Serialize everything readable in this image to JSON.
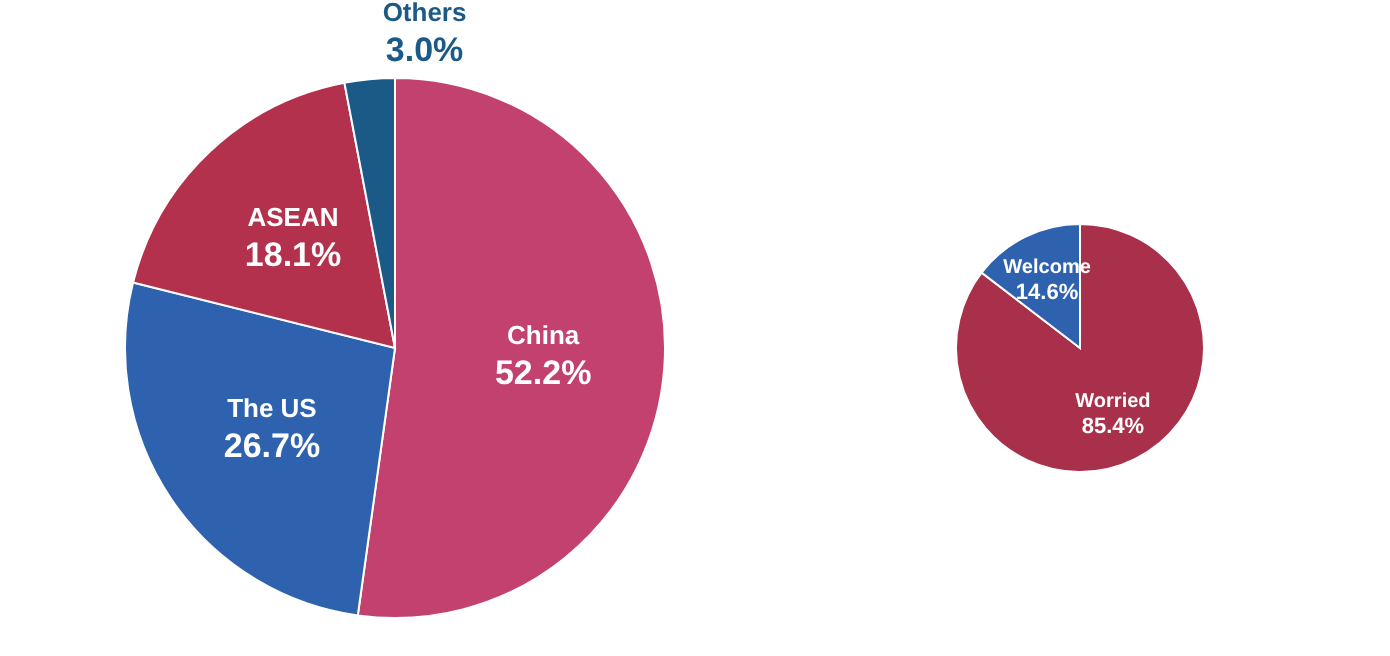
{
  "chart_data": [
    {
      "type": "pie",
      "categories": [
        "China",
        "The US",
        "ASEAN",
        "Others"
      ],
      "values": [
        52.2,
        26.7,
        18.1,
        3.0
      ],
      "colors": [
        "#c2416f",
        "#2f62ae",
        "#b3314c",
        "#1b5a86"
      ],
      "value_labels": [
        "52.2%",
        "26.7%",
        "18.1%",
        "3.0%"
      ],
      "legend": false
    },
    {
      "type": "pie",
      "categories": [
        "Worried",
        "Welcome"
      ],
      "values": [
        85.4,
        14.6
      ],
      "colors": [
        "#a9304a",
        "#2f62ae"
      ],
      "value_labels": [
        "85.4%",
        "14.6%"
      ],
      "legend": false
    }
  ]
}
